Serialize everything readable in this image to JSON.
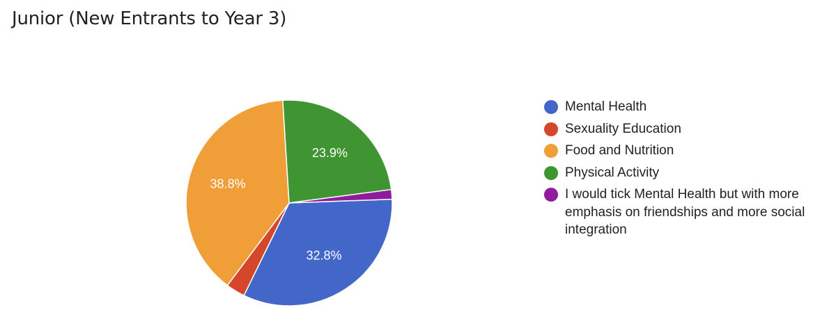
{
  "chart_data": {
    "type": "pie",
    "title": "Junior (New Entrants to Year 3)",
    "categories": [
      "Mental Health",
      "Sexuality Education",
      "Food and Nutrition",
      "Physical Activity",
      "I would tick Mental Health but with more emphasis on friendships and more social integration"
    ],
    "values": [
      32.8,
      3.0,
      38.8,
      23.9,
      1.5
    ],
    "data_labels": [
      "32.8%",
      "",
      "38.8%",
      "23.9%",
      ""
    ],
    "colors": [
      "#4267c9",
      "#d4472b",
      "#f09e38",
      "#3f9531",
      "#8e1c9c"
    ],
    "legend_position": "right"
  }
}
